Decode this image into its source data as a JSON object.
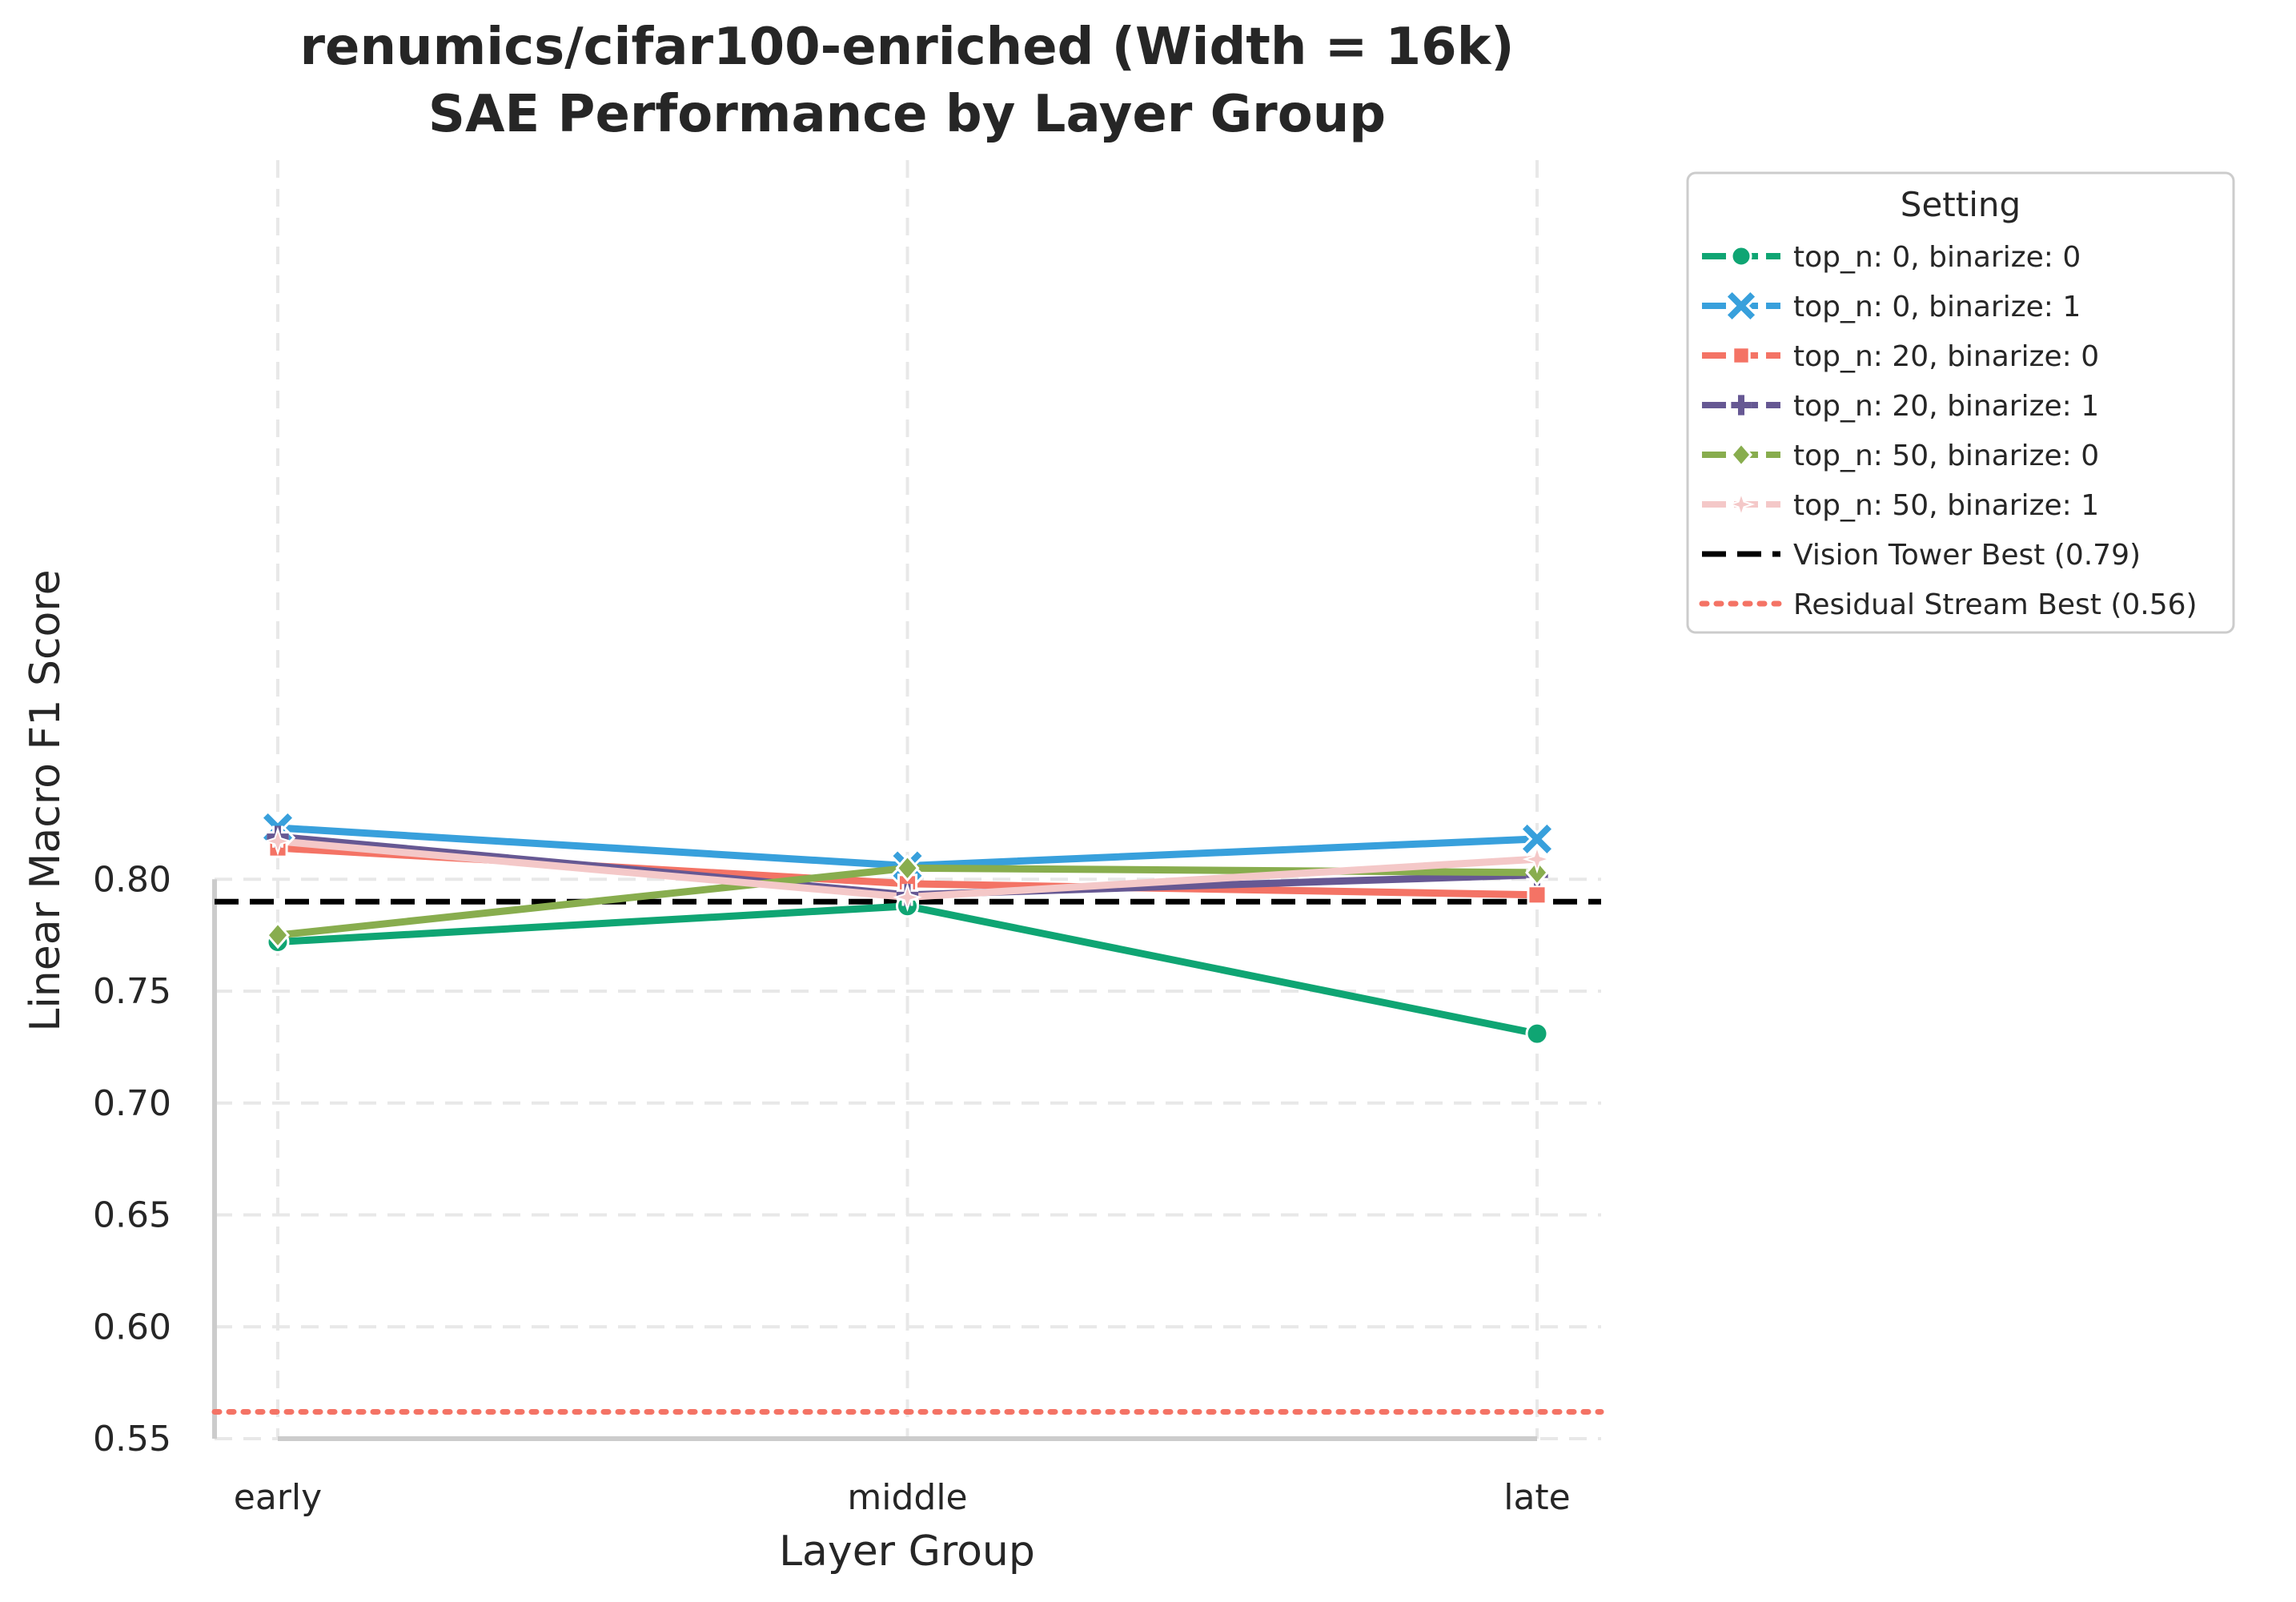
{
  "chart_data": {
    "type": "line",
    "title": "renumics/cifar100-enriched (Width = 16k)",
    "subtitle": "SAE Performance by Layer Group",
    "xlabel": "Layer Group",
    "ylabel": "Linear Macro F1 Score",
    "categories": [
      "early",
      "middle",
      "late"
    ],
    "ylim": [
      0.55,
      0.835
    ],
    "yticks": [
      0.55,
      0.6,
      0.65,
      0.7,
      0.75,
      0.8
    ],
    "ytick_labels": [
      "0.55",
      "0.60",
      "0.65",
      "0.70",
      "0.75",
      "0.80"
    ],
    "grid": true,
    "legend": {
      "title": "Setting",
      "placement": "outside-upper-right"
    },
    "series": [
      {
        "name": "top_n: 0, binarize: 0",
        "values": [
          0.772,
          0.788,
          0.731
        ],
        "color": "#0fa573",
        "marker": "circle"
      },
      {
        "name": "top_n: 0, binarize: 1",
        "values": [
          0.823,
          0.806,
          0.818
        ],
        "color": "#38a0dc",
        "marker": "x"
      },
      {
        "name": "top_n: 20, binarize: 0",
        "values": [
          0.814,
          0.798,
          0.793
        ],
        "color": "#f47365",
        "marker": "square"
      },
      {
        "name": "top_n: 20, binarize: 1",
        "values": [
          0.819,
          0.793,
          0.802
        ],
        "color": "#665893",
        "marker": "plus"
      },
      {
        "name": "top_n: 50, binarize: 0",
        "values": [
          0.775,
          0.805,
          0.803
        ],
        "color": "#88ad4e",
        "marker": "diamond"
      },
      {
        "name": "top_n: 50, binarize: 1",
        "values": [
          0.817,
          0.792,
          0.809
        ],
        "color": "#f4c8c8",
        "marker": "star"
      }
    ],
    "reference_lines": [
      {
        "name": "Vision Tower Best (0.79)",
        "value": 0.79,
        "color": "#000000",
        "style": "dashed"
      },
      {
        "name": "Residual Stream Best (0.56)",
        "value": 0.562,
        "color": "#f47365",
        "style": "dotted"
      }
    ]
  }
}
